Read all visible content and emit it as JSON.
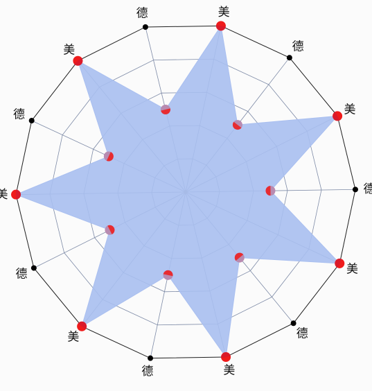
{
  "chart_data": {
    "type": "radar",
    "title": "",
    "axes": [
      "美",
      "德",
      "美",
      "德",
      "美",
      "德",
      "美",
      "德",
      "美",
      "德",
      "美",
      "德",
      "美",
      "德"
    ],
    "values": [
      100,
      50,
      100,
      50,
      100,
      50,
      100,
      50,
      100,
      50,
      100,
      50,
      100,
      50
    ],
    "range": [
      0,
      100
    ],
    "grid_rings": 5,
    "start_angle_deg": -78,
    "direction": "clockwise",
    "colors": {
      "area_fill": "#a9bff0",
      "area_stroke": "#a9bff0",
      "grid": "#1f1f1f",
      "inner_grid": "#7d8aa6",
      "marker_red": "#ef1b1b",
      "marker_purple": "#b88bb1",
      "vertex_dot": "#000000",
      "center_dot": "#9a9a9a"
    }
  }
}
